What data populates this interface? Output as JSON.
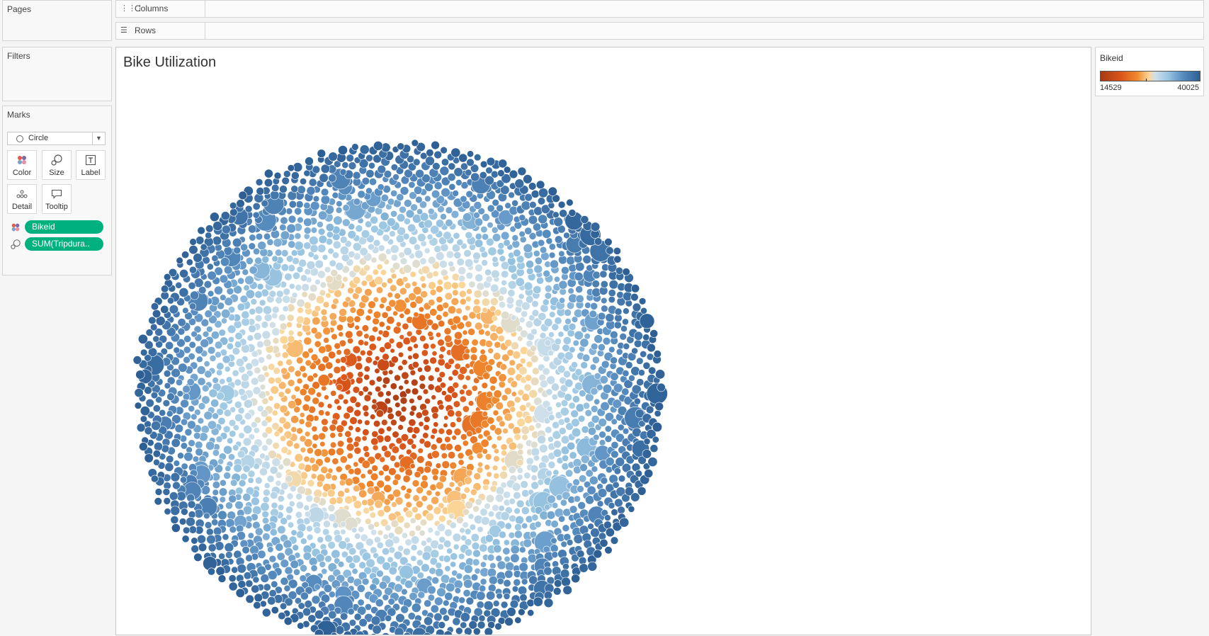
{
  "cards": {
    "pages": "Pages",
    "filters": "Filters",
    "marks": "Marks"
  },
  "shelves": {
    "columns": "Columns",
    "rows": "Rows"
  },
  "marks": {
    "type": "Circle",
    "buttons": {
      "color": "Color",
      "size": "Size",
      "label": "Label",
      "detail": "Detail",
      "tooltip": "Tooltip"
    },
    "pills": [
      {
        "field": "Bikeid",
        "encoding": "color"
      },
      {
        "field": "SUM(Tripdura..",
        "encoding": "size"
      }
    ]
  },
  "view": {
    "title": "Bike Utilization"
  },
  "chart_data": {
    "type": "packed-bubble",
    "title": "Bike Utilization",
    "color_field": "Bikeid",
    "size_field": "SUM(Tripdura..",
    "color_range": [
      14529,
      40025
    ],
    "color_scheme": [
      "#a63a14",
      "#d9541a",
      "#f08a2e",
      "#fbd79a",
      "#cfe0ea",
      "#9ac6e2",
      "#5a8fc2",
      "#2d5f94"
    ],
    "layout": "concentric bands: low Bikeid (orange) at center, high Bikeid (blue) at outer ring"
  },
  "legend": {
    "title": "Bikeid",
    "min": "14529",
    "max": "40025"
  }
}
